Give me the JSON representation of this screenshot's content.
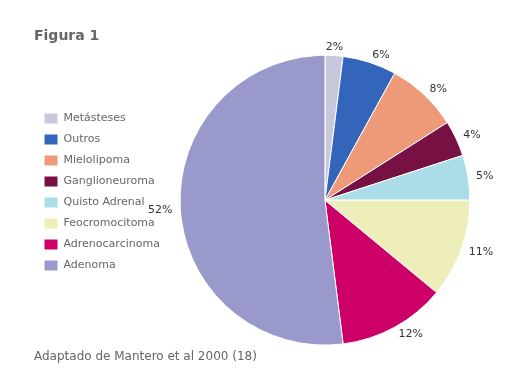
{
  "chart_data": {
    "type": "pie",
    "title": "Figura 1",
    "annotations": [
      "Adaptado de Mantero et al 2000 (18)"
    ],
    "categories": [
      "Metásteses",
      "Outros",
      "Mielolipoma",
      "Ganglioneuroma",
      "Quisto Adrenal",
      "Feocromocitoma",
      "Adrenocarcinoma",
      "Adenoma"
    ],
    "values": [
      2,
      6,
      8,
      4,
      5,
      11,
      12,
      52
    ],
    "value_labels": [
      "2%",
      "6%",
      "8%",
      "4%",
      "5%",
      "11%",
      "12%",
      "52%"
    ],
    "colors": [
      "#c8c8dc",
      "#3366bb",
      "#ee9977",
      "#771144",
      "#aadde8",
      "#eeeebb",
      "#cc0066",
      "#9999cc"
    ],
    "data_labels": true,
    "legend": "left"
  }
}
